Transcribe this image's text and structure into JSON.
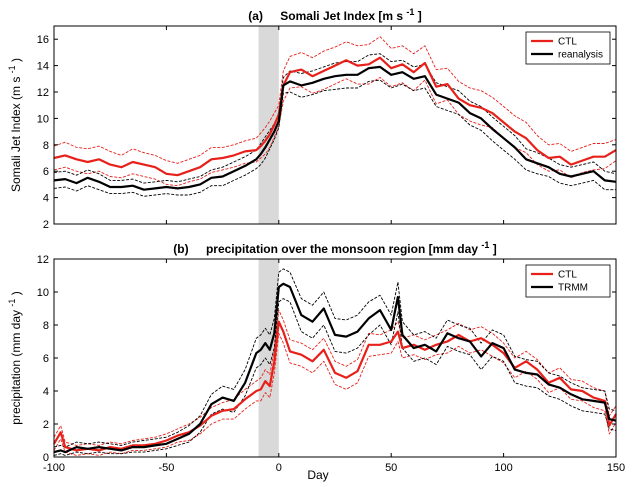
{
  "figure": {
    "xlabel": "Day"
  },
  "chart_data": [
    {
      "type": "line",
      "panel": "a",
      "title_prefix": "(a)",
      "title_main": "Somali Jet Index [m s",
      "title_sup": "-1",
      "title_end": "]",
      "ylabel_main": "Somali Jet Index (m s",
      "ylabel_sup": "-1",
      "ylabel_end": ")",
      "xlabel": "",
      "xlim": [
        -100,
        150
      ],
      "ylim": [
        2,
        17
      ],
      "xticks": [
        -100,
        -50,
        0,
        50,
        100,
        150
      ],
      "show_xtick_labels": false,
      "yticks": [
        2,
        4,
        6,
        8,
        10,
        12,
        14,
        16
      ],
      "grid": false,
      "legend_position": "top-right",
      "shaded_region": {
        "x": [
          -9,
          0
        ],
        "color": "#d9d9d9"
      },
      "x": [
        -100,
        -95,
        -90,
        -85,
        -80,
        -75,
        -70,
        -65,
        -60,
        -55,
        -50,
        -45,
        -40,
        -35,
        -30,
        -25,
        -20,
        -15,
        -10,
        -8,
        -6,
        -4,
        -2,
        0,
        2,
        5,
        10,
        15,
        20,
        25,
        30,
        35,
        40,
        45,
        50,
        55,
        60,
        65,
        70,
        75,
        80,
        85,
        90,
        95,
        100,
        105,
        110,
        115,
        120,
        125,
        130,
        135,
        140,
        145,
        150
      ],
      "series": [
        {
          "name": "CTL",
          "color": "#e8201a",
          "legend": true,
          "values": [
            7.0,
            7.2,
            6.9,
            6.7,
            6.9,
            6.5,
            6.3,
            6.7,
            6.5,
            6.3,
            5.8,
            5.7,
            6.0,
            6.3,
            6.9,
            7.0,
            7.2,
            7.5,
            7.6,
            7.9,
            8.3,
            8.8,
            9.5,
            10.3,
            12.5,
            13.5,
            13.7,
            13.2,
            13.6,
            14.0,
            14.4,
            14.0,
            14.1,
            14.6,
            13.8,
            14.1,
            13.5,
            14.2,
            12.4,
            12.6,
            11.5,
            11.0,
            10.8,
            10.4,
            9.7,
            9.0,
            8.5,
            7.6,
            7.0,
            7.1,
            6.5,
            6.8,
            7.1,
            7.1,
            7.6
          ]
        },
        {
          "name": "reanalysis",
          "color": "#000000",
          "legend": true,
          "values": [
            5.3,
            5.4,
            5.1,
            5.5,
            5.2,
            4.8,
            4.8,
            4.9,
            4.6,
            4.7,
            4.8,
            4.7,
            4.8,
            5.0,
            5.5,
            5.6,
            6.0,
            6.4,
            6.9,
            7.3,
            7.8,
            8.4,
            9.0,
            9.8,
            12.5,
            12.8,
            12.5,
            12.7,
            13.0,
            13.2,
            13.3,
            13.3,
            13.8,
            13.9,
            13.3,
            13.5,
            13.0,
            13.2,
            11.8,
            11.5,
            11.2,
            10.4,
            10.0,
            9.2,
            8.5,
            7.8,
            6.9,
            6.6,
            6.3,
            5.8,
            5.6,
            5.8,
            6.0,
            5.3,
            5.2
          ]
        },
        {
          "name": "CTL upper",
          "color": "#e8201a",
          "dashed": true,
          "legend": false,
          "values": [
            7.9,
            8.2,
            7.8,
            7.7,
            7.9,
            7.5,
            7.2,
            7.7,
            7.4,
            7.2,
            6.8,
            6.6,
            6.9,
            7.2,
            7.8,
            7.8,
            8.0,
            8.3,
            8.5,
            8.9,
            9.3,
            9.8,
            10.4,
            11.0,
            13.6,
            14.7,
            15.0,
            14.6,
            15.1,
            15.4,
            15.8,
            15.5,
            15.6,
            16.2,
            15.3,
            15.5,
            14.9,
            15.5,
            13.7,
            13.8,
            12.8,
            12.3,
            12.1,
            11.6,
            10.9,
            10.2,
            9.7,
            8.7,
            8.0,
            8.1,
            7.5,
            7.8,
            8.1,
            8.1,
            8.4
          ]
        },
        {
          "name": "CTL lower",
          "color": "#e8201a",
          "dashed": true,
          "legend": false,
          "values": [
            6.1,
            6.3,
            6.0,
            5.8,
            6.0,
            5.6,
            5.5,
            5.8,
            5.6,
            5.4,
            5.0,
            4.9,
            5.2,
            5.4,
            5.9,
            6.1,
            6.3,
            6.6,
            6.7,
            7.0,
            7.3,
            7.8,
            8.6,
            9.4,
            11.3,
            12.3,
            12.4,
            11.9,
            12.2,
            12.6,
            13.0,
            12.6,
            12.6,
            13.1,
            12.4,
            12.7,
            12.1,
            12.9,
            11.1,
            11.4,
            10.3,
            9.8,
            9.5,
            9.3,
            8.5,
            7.8,
            7.4,
            6.5,
            6.0,
            6.1,
            5.5,
            5.9,
            6.1,
            6.2,
            6.8
          ]
        },
        {
          "name": "reanalysis upper",
          "color": "#000000",
          "dashed": true,
          "legend": false,
          "values": [
            5.9,
            6.0,
            5.7,
            6.1,
            5.8,
            5.3,
            5.3,
            5.4,
            5.1,
            5.2,
            5.3,
            5.2,
            5.4,
            5.6,
            6.1,
            6.3,
            6.7,
            7.1,
            7.6,
            8.1,
            8.6,
            9.1,
            9.6,
            10.3,
            13.1,
            13.6,
            13.4,
            13.6,
            13.9,
            14.2,
            14.3,
            14.3,
            14.8,
            14.9,
            14.3,
            14.4,
            13.9,
            14.1,
            12.7,
            12.4,
            12.1,
            11.3,
            10.9,
            10.1,
            9.4,
            8.7,
            7.7,
            7.4,
            7.0,
            6.5,
            6.3,
            6.5,
            6.7,
            6.0,
            5.8
          ]
        },
        {
          "name": "reanalysis lower",
          "color": "#000000",
          "dashed": true,
          "legend": false,
          "values": [
            4.7,
            4.8,
            4.5,
            4.9,
            4.6,
            4.3,
            4.3,
            4.4,
            4.1,
            4.2,
            4.3,
            4.2,
            4.2,
            4.4,
            4.9,
            4.9,
            5.3,
            5.7,
            6.2,
            6.5,
            7.0,
            7.7,
            8.4,
            9.3,
            11.9,
            12.0,
            11.6,
            11.8,
            12.1,
            12.2,
            12.3,
            12.3,
            12.8,
            12.9,
            12.3,
            12.6,
            12.1,
            12.3,
            10.9,
            10.6,
            10.3,
            9.5,
            9.1,
            8.3,
            7.6,
            6.9,
            6.1,
            5.8,
            5.6,
            5.1,
            4.9,
            5.1,
            5.3,
            4.6,
            4.6
          ]
        }
      ]
    },
    {
      "type": "line",
      "panel": "b",
      "title_prefix": "(b)",
      "title_main": "precipitation over the monsoon region [mm day",
      "title_sup": "-1",
      "title_end": "]",
      "ylabel_main": "precipitation (mm day",
      "ylabel_sup": "-1",
      "ylabel_end": ")",
      "xlabel": "Day",
      "xlim": [
        -100,
        150
      ],
      "ylim": [
        0,
        12
      ],
      "xticks": [
        -100,
        -50,
        0,
        50,
        100,
        150
      ],
      "show_xtick_labels": true,
      "yticks": [
        0,
        2,
        4,
        6,
        8,
        10,
        12
      ],
      "grid": false,
      "legend_position": "top-right",
      "shaded_region": {
        "x": [
          -9,
          0
        ],
        "color": "#d9d9d9"
      },
      "x": [
        -100,
        -97,
        -95,
        -90,
        -85,
        -80,
        -75,
        -70,
        -65,
        -60,
        -55,
        -50,
        -45,
        -40,
        -35,
        -30,
        -25,
        -20,
        -15,
        -10,
        -8,
        -6,
        -4,
        -2,
        0,
        2,
        5,
        10,
        15,
        20,
        25,
        30,
        35,
        40,
        45,
        50,
        53,
        55,
        60,
        65,
        70,
        75,
        80,
        85,
        90,
        95,
        100,
        105,
        110,
        115,
        120,
        125,
        130,
        135,
        140,
        145,
        147,
        150
      ],
      "series": [
        {
          "name": "CTL",
          "color": "#e8201a",
          "legend": true,
          "values": [
            0.8,
            1.5,
            0.6,
            0.4,
            0.5,
            0.4,
            0.6,
            0.5,
            0.7,
            0.7,
            0.8,
            1.0,
            1.3,
            1.5,
            1.9,
            2.5,
            2.8,
            2.9,
            3.5,
            4.0,
            4.1,
            4.6,
            4.3,
            5.8,
            8.2,
            7.6,
            6.4,
            6.2,
            5.8,
            6.5,
            5.1,
            4.8,
            5.2,
            6.8,
            6.8,
            7.0,
            7.6,
            6.6,
            6.8,
            6.5,
            6.8,
            7.0,
            7.4,
            7.0,
            7.2,
            6.8,
            6.3,
            5.4,
            5.8,
            5.3,
            4.5,
            4.8,
            4.1,
            4.0,
            3.6,
            3.4,
            1.9,
            2.6
          ]
        },
        {
          "name": "TRMM",
          "color": "#000000",
          "legend": true,
          "values": [
            0.3,
            0.4,
            0.3,
            0.6,
            0.5,
            0.6,
            0.5,
            0.4,
            0.6,
            0.6,
            0.7,
            0.8,
            1.1,
            1.4,
            2.0,
            3.2,
            3.6,
            3.4,
            4.5,
            6.3,
            6.5,
            6.9,
            6.5,
            7.5,
            10.3,
            10.5,
            10.3,
            8.6,
            8.2,
            9.0,
            7.4,
            7.3,
            7.6,
            8.4,
            8.9,
            7.7,
            9.7,
            7.4,
            6.6,
            6.8,
            6.4,
            7.5,
            7.2,
            7.0,
            6.1,
            6.9,
            6.6,
            5.3,
            5.1,
            5.0,
            4.4,
            4.2,
            3.8,
            3.5,
            3.4,
            3.3,
            2.3,
            2.2
          ]
        },
        {
          "name": "CTL upper",
          "color": "#e8201a",
          "dashed": true,
          "legend": false,
          "values": [
            1.2,
            1.9,
            0.9,
            0.7,
            0.8,
            0.7,
            0.9,
            0.8,
            1.0,
            1.1,
            1.2,
            1.4,
            1.7,
            2.0,
            2.4,
            3.0,
            3.3,
            3.5,
            4.1,
            4.6,
            4.8,
            5.3,
            5.0,
            6.5,
            8.9,
            8.3,
            7.1,
            6.9,
            6.5,
            7.2,
            5.8,
            5.5,
            5.9,
            7.5,
            7.4,
            7.7,
            8.2,
            7.2,
            7.4,
            7.1,
            7.4,
            7.7,
            8.1,
            7.7,
            7.9,
            7.5,
            6.9,
            6.0,
            6.4,
            5.9,
            5.1,
            5.4,
            4.7,
            4.6,
            4.2,
            4.0,
            2.5,
            3.1
          ]
        },
        {
          "name": "CTL lower",
          "color": "#e8201a",
          "dashed": true,
          "legend": false,
          "values": [
            0.4,
            1.1,
            0.3,
            0.1,
            0.2,
            0.1,
            0.3,
            0.2,
            0.4,
            0.4,
            0.5,
            0.6,
            0.9,
            1.0,
            1.4,
            2.0,
            2.3,
            2.3,
            2.9,
            3.4,
            3.4,
            3.9,
            3.6,
            5.1,
            7.5,
            6.9,
            5.7,
            5.5,
            5.1,
            5.8,
            4.4,
            4.1,
            4.5,
            6.1,
            6.2,
            6.3,
            7.0,
            6.0,
            6.2,
            5.9,
            6.2,
            6.3,
            6.7,
            6.3,
            6.5,
            6.1,
            5.7,
            4.8,
            5.2,
            4.7,
            3.9,
            4.2,
            3.5,
            3.4,
            3.0,
            2.8,
            1.4,
            2.1
          ]
        },
        {
          "name": "TRMM upper",
          "color": "#000000",
          "dashed": true,
          "legend": false,
          "values": [
            0.6,
            0.7,
            0.6,
            0.9,
            0.8,
            0.9,
            0.8,
            0.7,
            0.9,
            1.0,
            1.1,
            1.2,
            1.5,
            1.9,
            2.5,
            3.8,
            4.3,
            4.1,
            5.3,
            7.2,
            7.4,
            7.8,
            7.4,
            8.4,
            11.2,
            11.4,
            11.2,
            9.6,
            9.2,
            10.0,
            8.4,
            8.3,
            8.6,
            9.4,
            9.8,
            8.6,
            10.6,
            8.2,
            7.4,
            7.6,
            7.2,
            8.3,
            8.0,
            7.8,
            6.9,
            7.7,
            7.4,
            6.1,
            5.9,
            5.8,
            5.1,
            4.9,
            4.5,
            4.2,
            4.1,
            4.0,
            2.9,
            2.8
          ]
        },
        {
          "name": "TRMM lower",
          "color": "#000000",
          "dashed": true,
          "legend": false,
          "values": [
            0.1,
            0.2,
            0.1,
            0.3,
            0.2,
            0.3,
            0.2,
            0.2,
            0.3,
            0.3,
            0.4,
            0.5,
            0.7,
            0.9,
            1.5,
            2.6,
            2.9,
            2.7,
            3.7,
            5.4,
            5.6,
            6.0,
            5.6,
            6.6,
            9.4,
            9.6,
            9.4,
            7.6,
            7.2,
            8.0,
            6.4,
            6.3,
            6.6,
            7.4,
            8.0,
            6.8,
            8.8,
            6.6,
            5.8,
            6.0,
            5.6,
            6.7,
            6.4,
            6.2,
            5.3,
            6.1,
            5.8,
            4.5,
            4.3,
            4.2,
            3.7,
            3.5,
            3.1,
            2.8,
            2.7,
            2.6,
            1.7,
            1.6
          ]
        }
      ]
    }
  ]
}
